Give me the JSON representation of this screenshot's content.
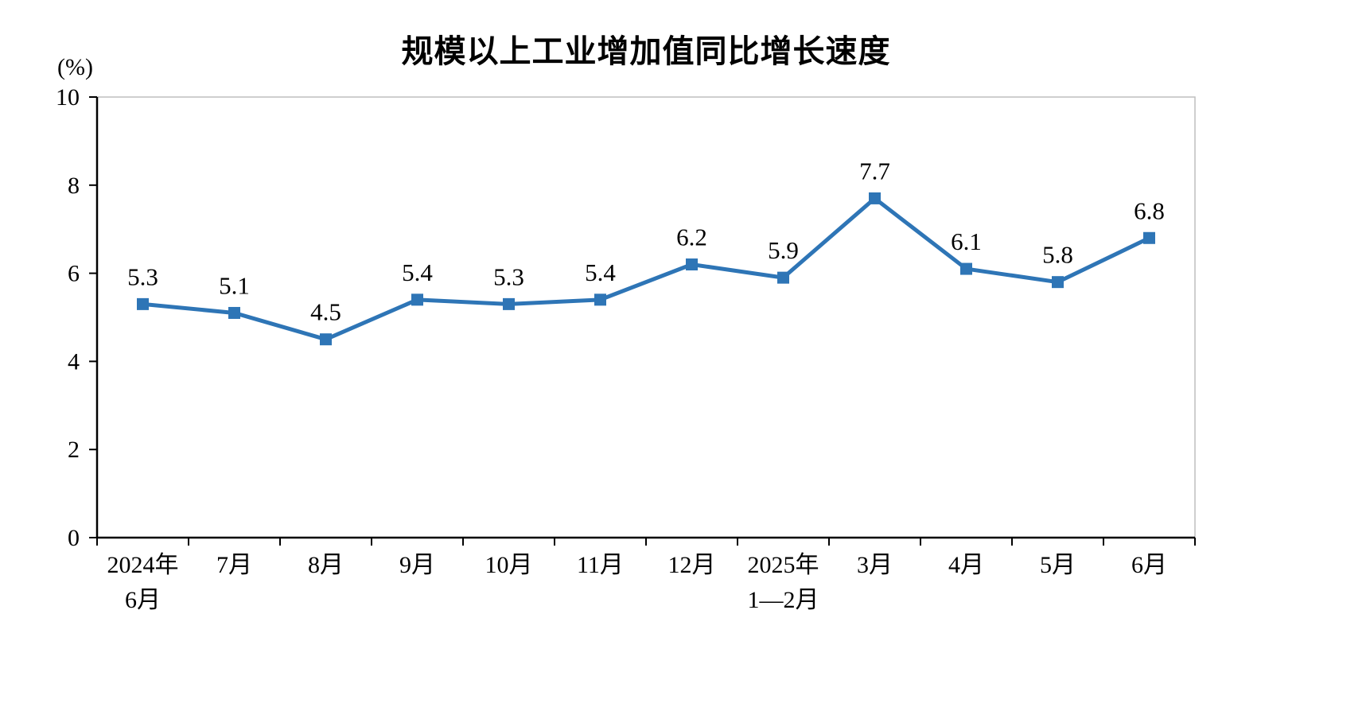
{
  "chart_data": {
    "type": "line",
    "title": "规模以上工业增加值同比增长速度",
    "ylabel": "(%)",
    "xlabel": "",
    "categories": [
      "2024年\n6月",
      "7月",
      "8月",
      "9月",
      "10月",
      "11月",
      "12月",
      "2025年\n1—2月",
      "3月",
      "4月",
      "5月",
      "6月"
    ],
    "values": [
      5.3,
      5.1,
      4.5,
      5.4,
      5.3,
      5.4,
      6.2,
      5.9,
      7.7,
      6.1,
      5.8,
      6.8
    ],
    "ylim": [
      0,
      10
    ],
    "ytick_step": 2,
    "grid": false,
    "legend": "none",
    "line_color": "#2E75B6",
    "marker": "square",
    "axis_color": "#000000",
    "plot_border_color": "#BFBFBF"
  }
}
